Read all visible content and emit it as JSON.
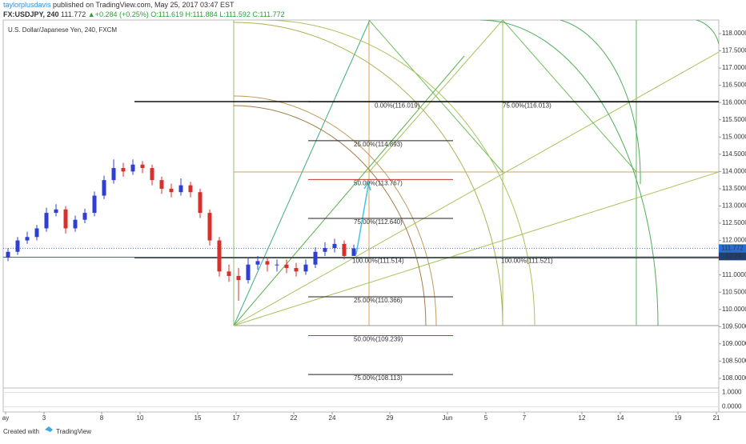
{
  "header": {
    "author": "taylorplusdavis",
    "published": " published on TradingView.com, May 25, 2017 03:47 EST",
    "symbol": "FX:USDJPY, 240",
    "price": "111.772",
    "arrow": "▲",
    "change": "+0.284 (+0.25%)",
    "open": "O:111.619",
    "high": "H:111.884",
    "low": "L:111.592",
    "close": "C:111.772"
  },
  "footer": {
    "created": "Created with",
    "brand": "TradingView"
  },
  "chart_data": {
    "type": "candlestick",
    "title": "U.S. Dollar/Japanese Yen, 240, FXCM",
    "x": [
      0.125,
      0.625,
      1.125,
      1.625,
      2.125,
      2.625,
      3.125,
      3.625,
      4.125,
      4.625,
      5.125,
      5.625,
      6.125,
      6.625,
      7.125,
      7.625,
      8.125,
      8.625,
      9.125,
      9.625,
      10.125,
      10.625,
      11.125,
      11.625,
      12.125,
      12.625,
      13.125,
      13.625,
      14.125,
      14.625,
      15.125,
      15.625,
      16.125,
      16.625,
      17.125,
      17.625,
      18.125
    ],
    "open": [
      111.5,
      111.67,
      112.0,
      112.1,
      112.35,
      112.8,
      112.9,
      112.35,
      112.6,
      112.8,
      113.3,
      113.75,
      114.1,
      114.0,
      114.2,
      114.1,
      113.75,
      113.5,
      113.4,
      113.6,
      113.4,
      112.8,
      112.0,
      111.1,
      110.97,
      110.85,
      111.3,
      111.4,
      111.3,
      111.3,
      111.2,
      111.1,
      111.3,
      111.67,
      111.78,
      111.9,
      111.55
    ],
    "high": [
      111.78,
      112.1,
      112.25,
      112.45,
      112.95,
      113.05,
      113.0,
      112.72,
      112.92,
      113.42,
      113.88,
      114.35,
      114.25,
      114.35,
      114.3,
      114.2,
      113.85,
      113.65,
      113.8,
      113.7,
      113.5,
      112.9,
      112.1,
      111.3,
      111.2,
      111.5,
      111.55,
      111.5,
      111.45,
      111.45,
      111.35,
      111.45,
      111.8,
      111.95,
      112.05,
      112.0,
      111.88
    ],
    "low": [
      111.4,
      111.58,
      111.9,
      112.0,
      112.25,
      112.7,
      112.2,
      112.25,
      112.5,
      112.7,
      113.2,
      113.65,
      113.85,
      113.9,
      113.95,
      113.6,
      113.35,
      113.25,
      113.3,
      113.25,
      112.65,
      111.85,
      110.95,
      110.8,
      110.25,
      110.75,
      111.15,
      111.1,
      111.1,
      111.05,
      110.95,
      111.0,
      111.2,
      111.55,
      111.65,
      111.45,
      111.59
    ],
    "close": [
      111.67,
      112.0,
      112.1,
      112.35,
      112.8,
      112.9,
      112.35,
      112.6,
      112.8,
      113.3,
      113.75,
      114.1,
      114.0,
      114.2,
      114.1,
      113.75,
      113.5,
      113.4,
      113.6,
      113.4,
      112.8,
      112.0,
      111.1,
      110.97,
      110.85,
      111.3,
      111.4,
      111.3,
      111.3,
      111.2,
      111.1,
      111.3,
      111.67,
      111.78,
      111.9,
      111.55,
      111.77
    ],
    "up_color": "#2f3fd0",
    "down_color": "#d6302d",
    "xlim": [
      -0.125,
      37.125
    ],
    "ylim": [
      107.72,
      118.394
    ],
    "xticks": [
      {
        "value": 0,
        "label": "ay"
      },
      {
        "value": 2,
        "label": "3"
      },
      {
        "value": 5,
        "label": "8"
      },
      {
        "value": 7,
        "label": "10"
      },
      {
        "value": 10,
        "label": "15"
      },
      {
        "value": 12,
        "label": "17"
      },
      {
        "value": 15,
        "label": "22"
      },
      {
        "value": 17,
        "label": "24"
      },
      {
        "value": 20,
        "label": "29"
      },
      {
        "value": 23,
        "label": "Jun"
      },
      {
        "value": 25,
        "label": "5"
      },
      {
        "value": 27,
        "label": "7"
      },
      {
        "value": 30,
        "label": "12"
      },
      {
        "value": 32,
        "label": "14"
      },
      {
        "value": 35,
        "label": "19"
      },
      {
        "value": 37,
        "label": "21"
      }
    ],
    "yticks": [
      {
        "value": 108,
        "label": "108.0000"
      },
      {
        "value": 108.5,
        "label": "108.5000"
      },
      {
        "value": 109,
        "label": "109.0000"
      },
      {
        "value": 109.5,
        "label": "109.5000"
      },
      {
        "value": 110,
        "label": "110.0000"
      },
      {
        "value": 110.5,
        "label": "110.5000"
      },
      {
        "value": 111,
        "label": "111.0000"
      },
      {
        "value": 111.5,
        "label": "111.5000"
      },
      {
        "value": 112,
        "label": "112.0000"
      },
      {
        "value": 112.5,
        "label": "112.5000"
      },
      {
        "value": 113,
        "label": "113.0000"
      },
      {
        "value": 113.5,
        "label": "113.5000"
      },
      {
        "value": 114,
        "label": "114.0000"
      },
      {
        "value": 114.5,
        "label": "114.5000"
      },
      {
        "value": 115,
        "label": "115.0000"
      },
      {
        "value": 115.5,
        "label": "115.5000"
      },
      {
        "value": 116,
        "label": "116.0000"
      },
      {
        "value": 116.5,
        "label": "116.5000"
      },
      {
        "value": 117,
        "label": "117.0000"
      },
      {
        "value": 117.5,
        "label": "117.5000"
      },
      {
        "value": 118,
        "label": "118.0000"
      }
    ],
    "last_price": 111.772,
    "timer": "12:24",
    "fib_levels": [
      {
        "value": 116.019,
        "label": "0.00%(116.019)",
        "color": "#222"
      },
      {
        "value": 114.893,
        "label": "25.00%(114.893)",
        "color": "#222"
      },
      {
        "value": 113.767,
        "label": "50.00%(113.767)",
        "color": "#c0392b"
      },
      {
        "value": 112.64,
        "label": "75.00%(112.640)",
        "color": "#222"
      },
      {
        "value": 111.514,
        "label": "100.00%(111.514)",
        "color": "#222"
      },
      {
        "value": 110.366,
        "label": "25.00%(110.366)",
        "color": "#222"
      },
      {
        "value": 109.239,
        "label": "50.00%(109.239)",
        "color": "#c0392b"
      },
      {
        "value": 108.113,
        "label": "75.00%(108.113)",
        "color": "#222"
      },
      {
        "value": 116.013,
        "label": "75.00%(116.013)",
        "color": "#222"
      },
      {
        "value": 111.521,
        "label": "100.00%(111.521)",
        "color": "#222"
      }
    ]
  },
  "lower_pane": {
    "ylim": [
      -0.2,
      1.2
    ],
    "yticks": [
      {
        "value": 1,
        "label": "1.0000"
      },
      {
        "value": 0,
        "label": "0.0000"
      }
    ]
  }
}
